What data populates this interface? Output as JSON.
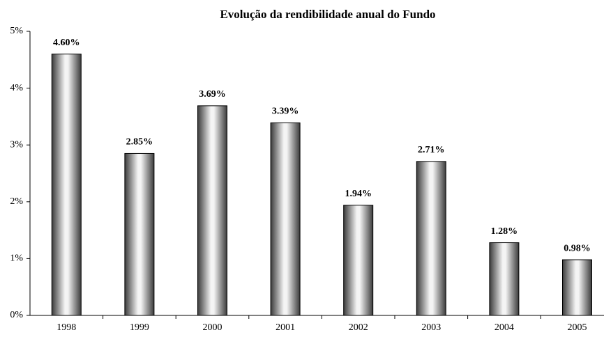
{
  "chart_data": {
    "type": "bar",
    "title": "Evolução da rendibilidade anual do Fundo",
    "categories": [
      "1998",
      "1999",
      "2000",
      "2001",
      "2002",
      "2003",
      "2004",
      "2005"
    ],
    "values": [
      4.6,
      2.85,
      3.69,
      3.39,
      1.94,
      2.71,
      1.28,
      0.98
    ],
    "value_labels": [
      "4.60%",
      "2.85%",
      "3.69%",
      "3.39%",
      "1.94%",
      "2.71%",
      "1.28%",
      "0.98%"
    ],
    "color": "#808080",
    "ylim": [
      0,
      5
    ],
    "yticks": [
      {
        "value": 0,
        "label": "0%"
      },
      {
        "value": 1,
        "label": "1%"
      },
      {
        "value": 2,
        "label": "2%"
      },
      {
        "value": 3,
        "label": "3%"
      },
      {
        "value": 4,
        "label": "4%"
      },
      {
        "value": 5,
        "label": "5%"
      }
    ],
    "grid": false
  }
}
